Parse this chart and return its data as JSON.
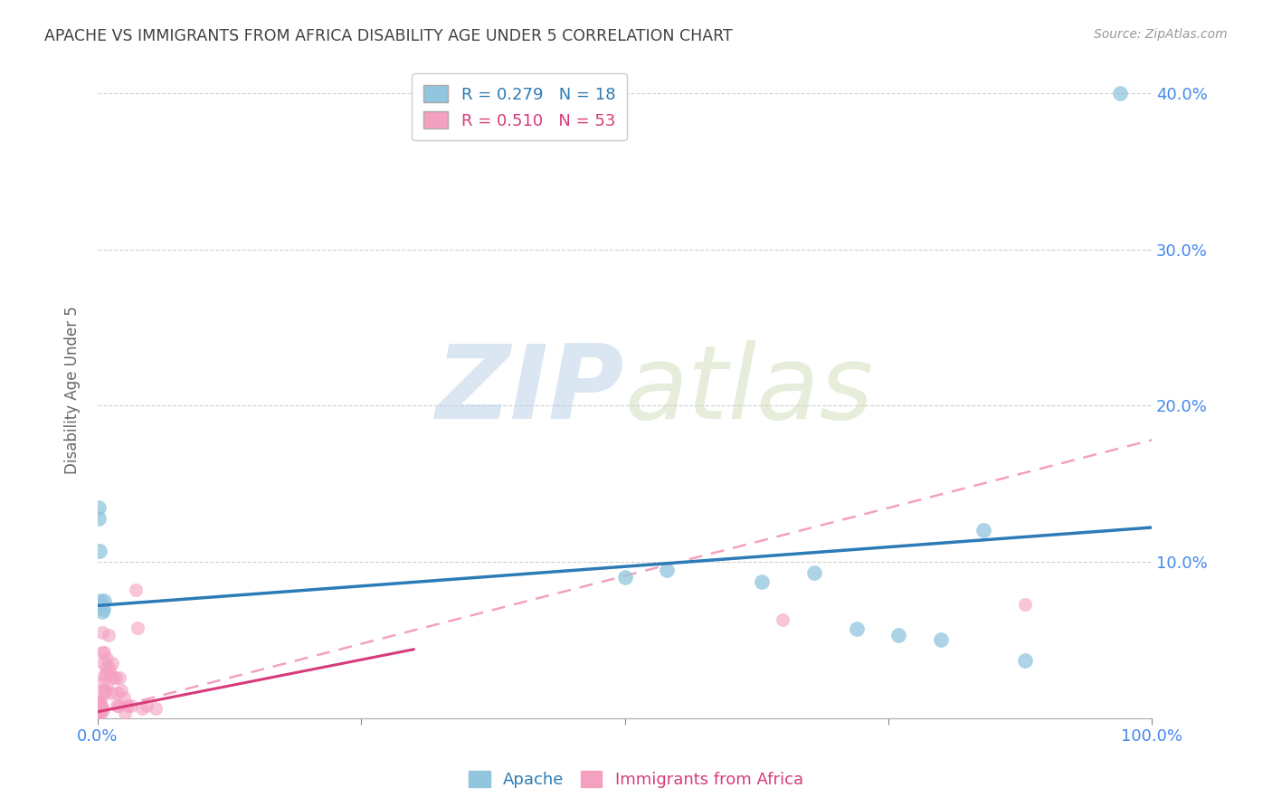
{
  "title": "APACHE VS IMMIGRANTS FROM AFRICA DISABILITY AGE UNDER 5 CORRELATION CHART",
  "source": "Source: ZipAtlas.com",
  "ylabel_label": "Disability Age Under 5",
  "xlim": [
    0.0,
    1.0
  ],
  "ylim": [
    0.0,
    0.42
  ],
  "apache_R": "0.279",
  "apache_N": "18",
  "africa_R": "0.510",
  "africa_N": "53",
  "watermark_zip": "ZIP",
  "watermark_atlas": "atlas",
  "apache_color": "#92c5de",
  "africa_color": "#f4a0c0",
  "apache_line_color": "#2c7bb6",
  "africa_line_color": "#d63b7a",
  "africa_dashed_color": "#f4a0c0",
  "grid_color": "#cccccc",
  "title_color": "#404040",
  "tick_label_color": "#4488ee",
  "apache_points": [
    [
      0.001,
      0.135
    ],
    [
      0.001,
      0.128
    ],
    [
      0.002,
      0.107
    ],
    [
      0.003,
      0.072
    ],
    [
      0.003,
      0.075
    ],
    [
      0.004,
      0.068
    ],
    [
      0.005,
      0.07
    ],
    [
      0.006,
      0.075
    ],
    [
      0.5,
      0.09
    ],
    [
      0.54,
      0.095
    ],
    [
      0.63,
      0.087
    ],
    [
      0.68,
      0.093
    ],
    [
      0.72,
      0.057
    ],
    [
      0.76,
      0.053
    ],
    [
      0.8,
      0.05
    ],
    [
      0.84,
      0.12
    ],
    [
      0.88,
      0.037
    ],
    [
      0.97,
      0.4
    ]
  ],
  "africa_points": [
    [
      0.001,
      0.005
    ],
    [
      0.001,
      0.008
    ],
    [
      0.001,
      0.01
    ],
    [
      0.001,
      0.003
    ],
    [
      0.001,
      0.006
    ],
    [
      0.002,
      0.007
    ],
    [
      0.002,
      0.002
    ],
    [
      0.002,
      0.011
    ],
    [
      0.002,
      0.004
    ],
    [
      0.002,
      0.007
    ],
    [
      0.003,
      0.01
    ],
    [
      0.003,
      0.005
    ],
    [
      0.003,
      0.006
    ],
    [
      0.003,
      0.008
    ],
    [
      0.003,
      0.003
    ],
    [
      0.004,
      0.007
    ],
    [
      0.004,
      0.023
    ],
    [
      0.004,
      0.055
    ],
    [
      0.004,
      0.042
    ],
    [
      0.005,
      0.005
    ],
    [
      0.005,
      0.018
    ],
    [
      0.005,
      0.035
    ],
    [
      0.006,
      0.027
    ],
    [
      0.006,
      0.042
    ],
    [
      0.007,
      0.018
    ],
    [
      0.007,
      0.016
    ],
    [
      0.008,
      0.032
    ],
    [
      0.008,
      0.028
    ],
    [
      0.009,
      0.02
    ],
    [
      0.009,
      0.038
    ],
    [
      0.01,
      0.053
    ],
    [
      0.011,
      0.032
    ],
    [
      0.012,
      0.028
    ],
    [
      0.013,
      0.016
    ],
    [
      0.014,
      0.035
    ],
    [
      0.015,
      0.026
    ],
    [
      0.017,
      0.026
    ],
    [
      0.018,
      0.008
    ],
    [
      0.019,
      0.016
    ],
    [
      0.02,
      0.008
    ],
    [
      0.021,
      0.026
    ],
    [
      0.022,
      0.018
    ],
    [
      0.025,
      0.013
    ],
    [
      0.026,
      0.003
    ],
    [
      0.028,
      0.008
    ],
    [
      0.032,
      0.008
    ],
    [
      0.036,
      0.082
    ],
    [
      0.038,
      0.058
    ],
    [
      0.042,
      0.006
    ],
    [
      0.046,
      0.008
    ],
    [
      0.055,
      0.006
    ],
    [
      0.65,
      0.063
    ],
    [
      0.88,
      0.073
    ]
  ],
  "apache_trendline": [
    [
      0.0,
      0.072
    ],
    [
      1.0,
      0.122
    ]
  ],
  "africa_solid_trendline": [
    [
      0.0,
      0.004
    ],
    [
      0.3,
      0.044
    ]
  ],
  "africa_dashed_trendline": [
    [
      0.0,
      0.004
    ],
    [
      1.0,
      0.178
    ]
  ]
}
